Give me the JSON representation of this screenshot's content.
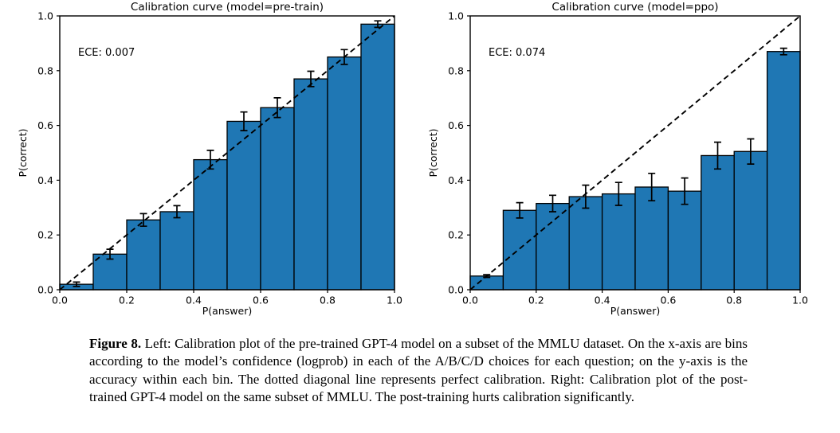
{
  "figure_caption": {
    "label": "Figure 8.",
    "text": "Left: Calibration plot of the pre-trained GPT-4 model on a subset of the MMLU dataset. On the x-axis are bins according to the model’s confidence (logprob) in each of the A/B/C/D choices for each question; on the y-axis is the accuracy within each bin. The dotted diagonal line represents perfect calibration. Right: Calibration plot of the post-trained GPT-4 model on the same subset of MMLU. The post-training hurts calibration significantly."
  },
  "colors": {
    "bar_fill": "#1f77b4",
    "bar_edge": "#000000",
    "diagonal_line": "#000000",
    "axis": "#000000",
    "background": "#ffffff"
  },
  "chart_data": [
    {
      "type": "bar",
      "title": "Calibration curve (model=pre-train)",
      "annotation": "ECE: 0.007",
      "ece": 0.007,
      "xlabel": "P(answer)",
      "ylabel": "P(correct)",
      "xlim": [
        0.0,
        1.0
      ],
      "ylim": [
        0.0,
        1.0
      ],
      "xticks": [
        0.0,
        0.2,
        0.4,
        0.6,
        0.8,
        1.0
      ],
      "yticks": [
        0.0,
        0.2,
        0.4,
        0.6,
        0.8,
        1.0
      ],
      "grid": false,
      "legend": null,
      "diagonal_reference_line": true,
      "bin_edges": [
        0.0,
        0.1,
        0.2,
        0.3,
        0.4,
        0.5,
        0.6,
        0.7,
        0.8,
        0.9,
        1.0
      ],
      "values": [
        0.02,
        0.13,
        0.255,
        0.285,
        0.475,
        0.615,
        0.665,
        0.77,
        0.85,
        0.97
      ],
      "errors": [
        0.008,
        0.018,
        0.023,
        0.022,
        0.034,
        0.034,
        0.036,
        0.028,
        0.027,
        0.012
      ]
    },
    {
      "type": "bar",
      "title": "Calibration curve (model=ppo)",
      "annotation": "ECE: 0.074",
      "ece": 0.074,
      "xlabel": "P(answer)",
      "ylabel": "P(correct)",
      "xlim": [
        0.0,
        1.0
      ],
      "ylim": [
        0.0,
        1.0
      ],
      "xticks": [
        0.0,
        0.2,
        0.4,
        0.6,
        0.8,
        1.0
      ],
      "yticks": [
        0.0,
        0.2,
        0.4,
        0.6,
        0.8,
        1.0
      ],
      "grid": false,
      "legend": null,
      "diagonal_reference_line": true,
      "bin_edges": [
        0.0,
        0.1,
        0.2,
        0.3,
        0.4,
        0.5,
        0.6,
        0.7,
        0.8,
        0.9,
        1.0
      ],
      "values": [
        0.05,
        0.29,
        0.315,
        0.34,
        0.35,
        0.375,
        0.36,
        0.49,
        0.505,
        0.87
      ],
      "errors": [
        0.005,
        0.028,
        0.03,
        0.042,
        0.042,
        0.05,
        0.048,
        0.049,
        0.046,
        0.012
      ]
    }
  ]
}
